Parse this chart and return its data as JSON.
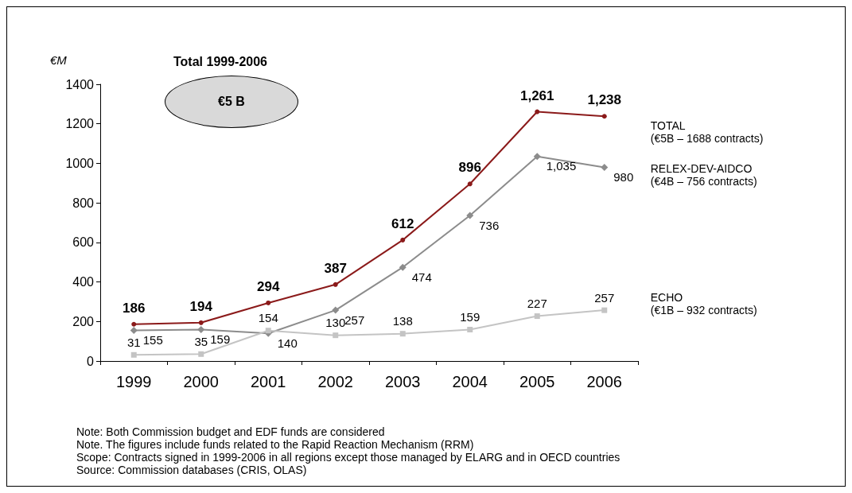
{
  "chart_data": {
    "type": "line",
    "title": "Total 1999-2006",
    "subtitle": "€5 B",
    "ylabel": "€M",
    "categories": [
      "1999",
      "2000",
      "2001",
      "2002",
      "2003",
      "2004",
      "2005",
      "2006"
    ],
    "series": [
      {
        "name": "TOTAL\n(€5B – 1688 contracts)",
        "color": "#8b1a1a",
        "marker": "circle",
        "values": [
          186,
          194,
          294,
          387,
          612,
          896,
          1261,
          1238
        ],
        "value_labels": [
          "186",
          "194",
          "294",
          "387",
          "612",
          "896",
          "1,261",
          "1,238"
        ]
      },
      {
        "name": "RELEX-DEV-AIDCO\n(€4B – 756 contracts)",
        "color": "#8c8c8c",
        "marker": "diamond",
        "values": [
          155,
          159,
          140,
          257,
          474,
          736,
          1035,
          980
        ],
        "value_labels": [
          "155",
          "159",
          "140",
          "257",
          "474",
          "736",
          "1,035",
          "980"
        ]
      },
      {
        "name": "ECHO\n(€1B – 932 contracts)",
        "color": "#c4c4c4",
        "marker": "square",
        "values": [
          31,
          35,
          154,
          130,
          138,
          159,
          227,
          257
        ],
        "value_labels": [
          "31",
          "35",
          "154",
          "130",
          "138",
          "159",
          "227",
          "257"
        ]
      }
    ],
    "ylim": [
      0,
      1400
    ],
    "yticks": [
      0,
      200,
      400,
      600,
      800,
      1000,
      1200,
      1400
    ],
    "grid": false,
    "legend": false,
    "annotations": [
      "Note: Both Commission budget and EDF funds are considered",
      "Note. The figures include funds related to the Rapid Reaction Mechanism (RRM)",
      "Scope: Contracts signed in 1999-2006 in all regions except those managed by ELARG and in OECD countries",
      "Source: Commission databases (CRIS, OLAS)"
    ]
  }
}
